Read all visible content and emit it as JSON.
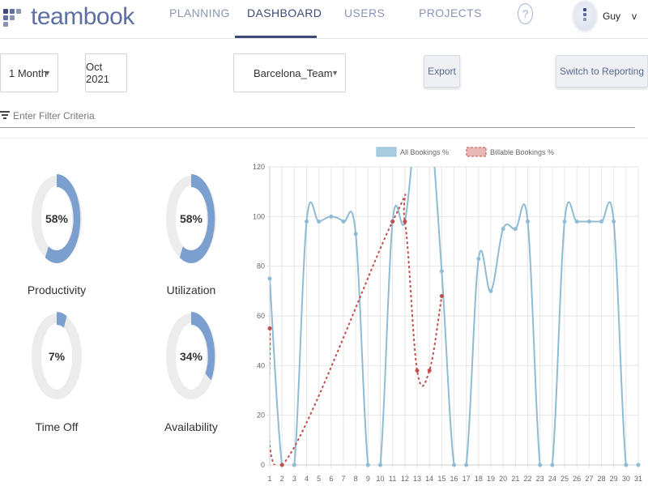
{
  "app": {
    "logo_text": "teambook"
  },
  "nav": {
    "tabs": [
      {
        "label": "PLANNING",
        "active": false
      },
      {
        "label": "DASHBOARD",
        "active": true
      },
      {
        "label": "USERS",
        "active": false
      },
      {
        "label": "PROJECTS",
        "active": false
      }
    ],
    "help_label": "?"
  },
  "user": {
    "name": "Guy",
    "caret": "v"
  },
  "toolbar": {
    "period": "1 Month",
    "date": "Oct 2021",
    "team": "Barcelona_Team",
    "export_label": "Export",
    "switch_label": "Switch to Reporting"
  },
  "filter": {
    "placeholder": "Enter Filter Criteria"
  },
  "gauges": [
    {
      "label": "Productivity",
      "value": 58,
      "text": "58%"
    },
    {
      "label": "Utilization",
      "value": 58,
      "text": "58%"
    },
    {
      "label": "Time Off",
      "value": 7,
      "text": "7%"
    },
    {
      "label": "Availability",
      "value": 34,
      "text": "34%"
    }
  ],
  "colors": {
    "gauge_fill": "#7b9fcf",
    "gauge_track": "#ececec",
    "all_bookings": "#8fbcd4",
    "billable_bookings": "#c0504d",
    "nav_active": "#3d4a78",
    "logo": "#5f6fa3"
  },
  "chart_data": {
    "type": "line",
    "x": [
      1,
      2,
      3,
      4,
      5,
      6,
      7,
      8,
      9,
      10,
      11,
      12,
      13,
      14,
      15,
      16,
      17,
      18,
      19,
      20,
      21,
      22,
      23,
      24,
      25,
      26,
      27,
      28,
      29,
      30,
      31
    ],
    "ylim": [
      0,
      120
    ],
    "yticks": [
      0,
      20,
      40,
      60,
      80,
      100,
      120
    ],
    "legend_position": "top",
    "grid": true,
    "series": [
      {
        "name": "All Bookings %",
        "values": [
          75,
          0,
          0,
          98,
          98,
          100,
          98,
          93,
          0,
          0,
          98,
          98,
          140,
          140,
          78,
          0,
          0,
          83,
          70,
          95,
          95,
          98,
          0,
          0,
          98,
          98,
          98,
          98,
          98,
          0,
          0
        ]
      },
      {
        "name": "Billable Bookings %",
        "x": [
          1,
          2,
          11,
          12,
          13,
          14,
          15
        ],
        "values": [
          55,
          0,
          98,
          98,
          38,
          38,
          68
        ]
      }
    ]
  }
}
